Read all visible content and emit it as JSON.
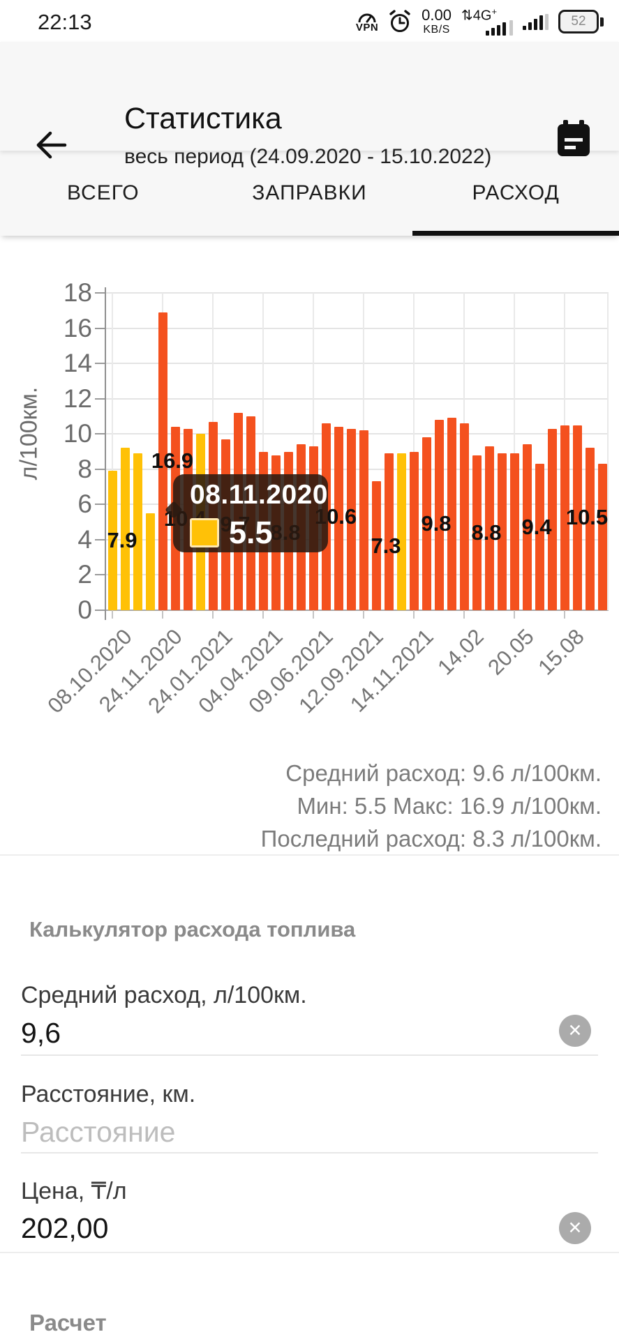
{
  "status_bar": {
    "time": "22:13",
    "vpn_label": "VPN",
    "net_speed_value": "0.00",
    "net_speed_unit": "KB/S",
    "network_type": "4G",
    "network_type_suffix": "+",
    "updown_arrows": "⇅",
    "battery_level": "52",
    "icons": [
      "vpn-icon",
      "alarm-clock-icon",
      "network-speed",
      "mobile-network-4g-icon",
      "signal-bars-icon",
      "battery-icon"
    ]
  },
  "header": {
    "title": "Статистика",
    "subtitle": "весь период (24.09.2020 - 15.10.2022)"
  },
  "tabs": [
    {
      "label": "ВСЕГО",
      "active": false
    },
    {
      "label": "ЗАПРАВКИ",
      "active": false
    },
    {
      "label": "РАСХОД",
      "active": true
    }
  ],
  "chart_data": {
    "type": "bar",
    "ylabel": "л/100км.",
    "ylim": [
      0,
      18
    ],
    "ytick_step": 2,
    "grid": true,
    "x_tick_labels": [
      "08.10.2020",
      "24.11.2020",
      "24.01.2021",
      "04.04.2021",
      "09.06.2021",
      "12.09.2021",
      "14.11.2021",
      "14.02",
      "20.05",
      "15.08"
    ],
    "colors": {
      "orange": "#F4511E",
      "yellow": "#FFC107"
    },
    "bars": [
      {
        "value": 7.9,
        "color": "yellow",
        "label": "7.9"
      },
      {
        "value": 9.2,
        "color": "yellow"
      },
      {
        "value": 8.9,
        "color": "yellow"
      },
      {
        "value": 5.5,
        "color": "yellow",
        "selected": true
      },
      {
        "value": 16.9,
        "color": "orange",
        "label": "16.9"
      },
      {
        "value": 10.4,
        "color": "orange",
        "label": "10.4"
      },
      {
        "value": 10.3,
        "color": "orange"
      },
      {
        "value": 10.0,
        "color": "yellow"
      },
      {
        "value": 10.7,
        "color": "orange"
      },
      {
        "value": 9.7,
        "color": "orange",
        "label": "9.7"
      },
      {
        "value": 11.2,
        "color": "orange"
      },
      {
        "value": 11.0,
        "color": "orange"
      },
      {
        "value": 9.0,
        "color": "orange"
      },
      {
        "value": 8.8,
        "color": "orange",
        "label": "8.8"
      },
      {
        "value": 9.0,
        "color": "orange"
      },
      {
        "value": 9.4,
        "color": "orange"
      },
      {
        "value": 9.3,
        "color": "orange"
      },
      {
        "value": 10.6,
        "color": "orange",
        "label": "10.6"
      },
      {
        "value": 10.4,
        "color": "orange"
      },
      {
        "value": 10.3,
        "color": "orange"
      },
      {
        "value": 10.2,
        "color": "orange"
      },
      {
        "value": 7.3,
        "color": "orange",
        "label": "7.3"
      },
      {
        "value": 8.9,
        "color": "orange"
      },
      {
        "value": 8.9,
        "color": "yellow"
      },
      {
        "value": 9.0,
        "color": "orange"
      },
      {
        "value": 9.8,
        "color": "orange",
        "label": "9.8"
      },
      {
        "value": 10.8,
        "color": "orange"
      },
      {
        "value": 10.9,
        "color": "orange"
      },
      {
        "value": 10.6,
        "color": "orange"
      },
      {
        "value": 8.8,
        "color": "orange",
        "label": "8.8"
      },
      {
        "value": 9.3,
        "color": "orange"
      },
      {
        "value": 8.9,
        "color": "orange"
      },
      {
        "value": 8.9,
        "color": "orange"
      },
      {
        "value": 9.4,
        "color": "orange",
        "label": "9.4"
      },
      {
        "value": 8.3,
        "color": "orange"
      },
      {
        "value": 10.3,
        "color": "orange"
      },
      {
        "value": 10.5,
        "color": "orange"
      },
      {
        "value": 10.5,
        "color": "orange",
        "label": "10.5"
      },
      {
        "value": 9.2,
        "color": "orange"
      },
      {
        "value": 8.3,
        "color": "orange"
      }
    ],
    "tooltip": {
      "date": "08.11.2020",
      "value": "5.5"
    },
    "legend_position": "none"
  },
  "stats": {
    "line1": "Средний расход: 9.6 л/100км.",
    "line2": "Мин: 5.5 Макс: 16.9 л/100км.",
    "line3": "Последний расход: 8.3 л/100км."
  },
  "calculator": {
    "title": "Калькулятор расхода топлива",
    "fields": [
      {
        "label": "Средний расход, л/100км.",
        "value": "9,6"
      },
      {
        "label": "Расстояние, км.",
        "placeholder": "Расстояние"
      },
      {
        "label": "Цена, ₸/л",
        "value": "202,00"
      }
    ],
    "clear_glyph": "✕",
    "result_title": "Расчет"
  }
}
